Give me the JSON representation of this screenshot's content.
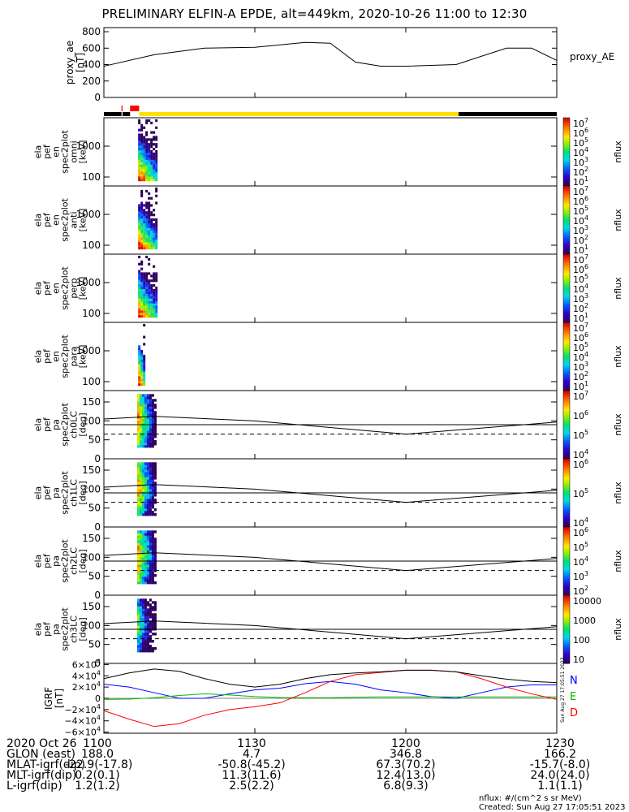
{
  "title": "PRELIMINARY ELFIN-A EPDE, alt=449km, 2020-10-26 11:00 to 12:30",
  "colors": {
    "bar_black": "#000000",
    "bar_red": "#ff0000",
    "bar_yellow": "#ffe000",
    "geo_x": "#0000ff",
    "geo_y": "#00bb00",
    "geo_z": "#ff0000",
    "geo_total": "#000000"
  },
  "chart_data": [
    {
      "type": "line",
      "panel": "proxy_ae",
      "ylabel": [
        "proxy_ae",
        "[nT]"
      ],
      "legend": "proxy_AE",
      "ylim": [
        0,
        850
      ],
      "yticks": [
        "800",
        "600",
        "400",
        "200",
        "0"
      ],
      "x_minutes": [
        0,
        10,
        20,
        30,
        40,
        45,
        50,
        55,
        60,
        70,
        80,
        85,
        90
      ],
      "values": [
        380,
        520,
        600,
        610,
        670,
        660,
        430,
        380,
        380,
        400,
        600,
        600,
        450
      ]
    },
    {
      "type": "bar",
      "panel": "orbit_status_bar",
      "segments": [
        {
          "start": 0,
          "end": 3.5,
          "color": "black"
        },
        {
          "start": 3.5,
          "end": 3.7,
          "color": "red"
        },
        {
          "start": 3.7,
          "end": 5.2,
          "color": "black"
        },
        {
          "start": 5.2,
          "end": 7.0,
          "color": "red"
        },
        {
          "start": 7.0,
          "end": 70.5,
          "color": "yellow"
        },
        {
          "start": 70.5,
          "end": 90,
          "color": "black"
        }
      ]
    },
    {
      "type": "heatmap",
      "panel": "en_spec2plot_omni",
      "ylabel": [
        "ela",
        "pef",
        "en",
        "spec2plot",
        "omni",
        "[keV]"
      ],
      "yticks": [
        "1000",
        "100"
      ],
      "colorbar": {
        "labels": [
          "10^7",
          "10^6",
          "10^5",
          "10^4",
          "10^3",
          "10^2",
          "10^1"
        ],
        "unit": "nflux"
      }
    },
    {
      "type": "heatmap",
      "panel": "en_spec2plot_anti",
      "ylabel": [
        "ela",
        "pef",
        "en",
        "spec2plot",
        "anti",
        "[keV]"
      ],
      "yticks": [
        "1000",
        "100"
      ],
      "colorbar": {
        "labels": [
          "10^7",
          "10^6",
          "10^5",
          "10^4",
          "10^3",
          "10^2",
          "10^1"
        ],
        "unit": "nflux"
      }
    },
    {
      "type": "heatmap",
      "panel": "en_spec2plot_perp",
      "ylabel": [
        "ela",
        "pef",
        "en",
        "spec2plot",
        "perp",
        "[keV]"
      ],
      "yticks": [
        "1000",
        "100"
      ],
      "colorbar": {
        "labels": [
          "10^7",
          "10^6",
          "10^5",
          "10^4",
          "10^3",
          "10^2",
          "10^1"
        ],
        "unit": "nflux"
      }
    },
    {
      "type": "heatmap",
      "panel": "en_spec2plot_para",
      "ylabel": [
        "ela",
        "pef",
        "en",
        "spec2plot",
        "para",
        "[keV]"
      ],
      "yticks": [
        "1000",
        "100"
      ],
      "colorbar": {
        "labels": [
          "10^7",
          "10^6",
          "10^5",
          "10^4",
          "10^3",
          "10^2",
          "10^1"
        ],
        "unit": "nflux"
      }
    },
    {
      "type": "heatmap",
      "panel": "pa_spec2plot_ch0LC",
      "ylabel": [
        "ela",
        "pef",
        "pa",
        "spec2plot",
        "ch0LC",
        "[deg]"
      ],
      "yticks": [
        "150",
        "100",
        "50",
        "0"
      ],
      "colorbar": {
        "labels": [
          "10^7",
          "10^6",
          "10^5",
          "10^4"
        ],
        "unit": "nflux"
      }
    },
    {
      "type": "heatmap",
      "panel": "pa_spec2plot_ch1LC",
      "ylabel": [
        "ela",
        "pef",
        "pa",
        "spec2plot",
        "ch1LC",
        "[deg]"
      ],
      "yticks": [
        "150",
        "100",
        "50",
        "0"
      ],
      "colorbar": {
        "labels": [
          "10^6",
          "10^5",
          "10^4"
        ],
        "unit": "nflux"
      }
    },
    {
      "type": "heatmap",
      "panel": "pa_spec2plot_ch2LC",
      "ylabel": [
        "ela",
        "pef",
        "pa",
        "spec2plot",
        "ch2LC",
        "[deg]"
      ],
      "yticks": [
        "150",
        "100",
        "50",
        "0"
      ],
      "colorbar": {
        "labels": [
          "10^6",
          "10^5",
          "10^4",
          "10^3",
          "10^2"
        ],
        "unit": "nflux"
      }
    },
    {
      "type": "heatmap",
      "panel": "pa_spec2plot_ch3LC",
      "ylabel": [
        "ela",
        "pef",
        "pa",
        "spec2plot",
        "ch3LC",
        "[deg]"
      ],
      "yticks": [
        "150",
        "100",
        "50",
        "0"
      ],
      "colorbar": {
        "labels": [
          "10000",
          "1000",
          "100",
          "10"
        ],
        "unit": "nflux"
      }
    },
    {
      "type": "line",
      "panel": "igrf",
      "ylabel": [
        "IGRF",
        "[nT]"
      ],
      "yticks": [
        "6×10^4",
        "4×10^4",
        "2×10^4",
        "0",
        "−2×10^4",
        "−4×10^4",
        "−6×10^4"
      ],
      "ylim": [
        -62000,
        62000
      ],
      "legend": [
        "N",
        "E",
        "D"
      ],
      "x_minutes": [
        0,
        5,
        10,
        15,
        20,
        25,
        30,
        35,
        40,
        45,
        50,
        55,
        60,
        65,
        70,
        75,
        80,
        85,
        90
      ],
      "series": [
        {
          "name": "N",
          "values": [
            25000,
            20000,
            10000,
            0,
            0,
            8000,
            15000,
            18000,
            26000,
            30000,
            25000,
            15000,
            10000,
            3000,
            0,
            10000,
            20000,
            24000,
            24000
          ]
        },
        {
          "name": "E",
          "values": [
            -2000,
            -1500,
            1000,
            5000,
            8000,
            6000,
            3000,
            1500,
            1000,
            1000,
            2000,
            2500,
            2500,
            2500,
            2500,
            2500,
            2500,
            2500,
            2500
          ]
        },
        {
          "name": "D",
          "values": [
            -22000,
            -37000,
            -50000,
            -45000,
            -30000,
            -20000,
            -15000,
            -8000,
            10000,
            30000,
            42000,
            46000,
            50000,
            50000,
            47000,
            35000,
            20000,
            8000,
            -2000
          ]
        },
        {
          "name": "total",
          "values": [
            35000,
            45000,
            52000,
            48000,
            35000,
            25000,
            20000,
            25000,
            35000,
            42000,
            45000,
            47000,
            50000,
            50000,
            47000,
            40000,
            34000,
            30000,
            28000
          ]
        }
      ]
    }
  ],
  "orbit_table": {
    "labels": [
      "2020 Oct 26",
      "GLON (east)",
      "MLAT-igrf(dip)",
      "MLT-igrf(dip)",
      "L-igrf(dip)"
    ],
    "columns": [
      {
        "values": [
          "1100",
          "188.0",
          "-22.9(-17.8)",
          "0.2(0.1)",
          "1.2(1.2)"
        ]
      },
      {
        "values": [
          "1130",
          "4.7",
          "-50.8(-45.2)",
          "11.3(11.6)",
          "2.5(2.2)"
        ]
      },
      {
        "values": [
          "1200",
          "346.8",
          "67.3(70.2)",
          "12.4(13.0)",
          "6.8(9.3)"
        ]
      },
      {
        "values": [
          "1230",
          "166.2",
          "-15.7(-8.0)",
          "24.0(24.0)",
          "1.1(1.1)"
        ]
      }
    ]
  },
  "footer": {
    "units": "nflux: #/(cm^2 s sr MeV)",
    "created": "Created: Sun Aug 27 17:05:51 2023"
  },
  "side_stamp": "Sun Aug 27 17:05:51 2023"
}
